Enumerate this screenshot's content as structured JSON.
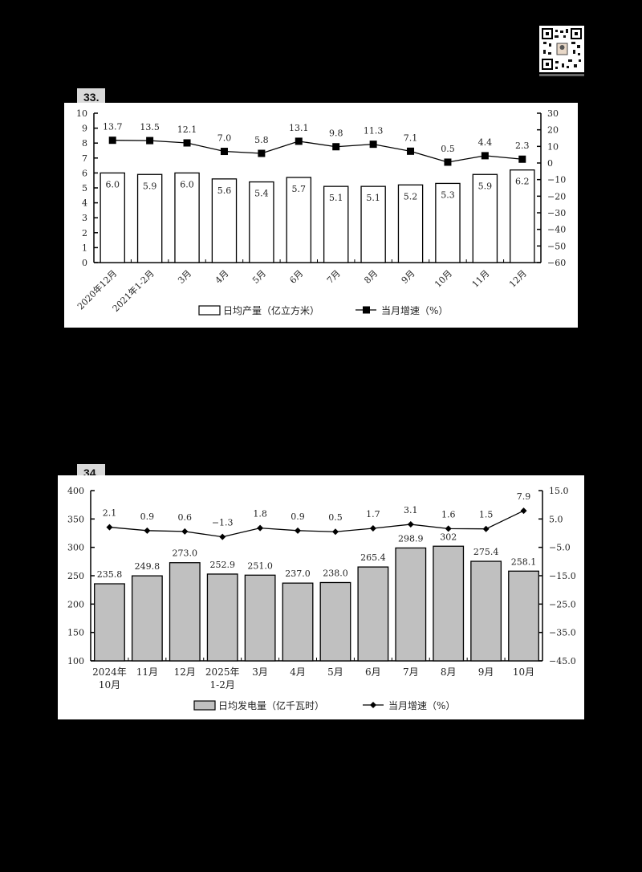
{
  "qr_code": {
    "icon": "qr-code-icon"
  },
  "chart_data": [
    {
      "id": "33",
      "label": "33.",
      "type": "bar+line",
      "categories": [
        "2020年12月",
        "2021年1-2月",
        "3月",
        "4月",
        "5月",
        "6月",
        "7月",
        "8月",
        "9月",
        "10月",
        "11月",
        "12月"
      ],
      "series": [
        {
          "name": "日均产量（亿立方米）",
          "type": "bar",
          "axis": "left",
          "color": "#ffffff",
          "values": [
            6.0,
            5.9,
            6.0,
            5.6,
            5.4,
            5.7,
            5.1,
            5.1,
            5.2,
            5.3,
            5.9,
            6.2
          ]
        },
        {
          "name": "当月增速（%）",
          "type": "line",
          "axis": "right",
          "marker": "square",
          "color": "#000000",
          "values": [
            13.7,
            13.5,
            12.1,
            7.0,
            5.8,
            13.1,
            9.8,
            11.3,
            7.1,
            0.5,
            4.4,
            2.3
          ]
        }
      ],
      "left_axis": {
        "min": 0,
        "max": 10,
        "ticks": [
          0,
          1,
          2,
          3,
          4,
          5,
          6,
          7,
          8,
          9,
          10
        ]
      },
      "right_axis": {
        "min": -60,
        "max": 30,
        "ticks": [
          30,
          20,
          10,
          0,
          -10,
          -20,
          -30,
          -40,
          -50,
          -60
        ]
      },
      "bar_labels": [
        "6.0",
        "5.9",
        "6.0",
        "5.6",
        "5.4",
        "5.7",
        "5.1",
        "5.1",
        "5.2",
        "5.3",
        "5.9",
        "6.2"
      ],
      "line_labels": [
        "13.7",
        "13.5",
        "12.1",
        "7.0",
        "5.8",
        "13.1",
        "9.8",
        "11.3",
        "7.1",
        "0.5",
        "4.4",
        "2.3"
      ],
      "legend_position": "bottom",
      "grid": false
    },
    {
      "id": "34",
      "label": "34.",
      "type": "bar+line",
      "categories": [
        "2024年\n10月",
        "11月",
        "12月",
        "2025年\n1-2月",
        "3月",
        "4月",
        "5月",
        "6月",
        "7月",
        "8月",
        "9月",
        "10月"
      ],
      "category_lines": [
        [
          "2024年",
          "10月"
        ],
        [
          "11月"
        ],
        [
          "12月"
        ],
        [
          "2025年",
          "1-2月"
        ],
        [
          "3月"
        ],
        [
          "4月"
        ],
        [
          "5月"
        ],
        [
          "6月"
        ],
        [
          "7月"
        ],
        [
          "8月"
        ],
        [
          "9月"
        ],
        [
          "10月"
        ]
      ],
      "series": [
        {
          "name": "日均发电量（亿千瓦时）",
          "type": "bar",
          "axis": "left",
          "color": "#c0c0c0",
          "values": [
            235.8,
            249.8,
            273.0,
            252.9,
            251.0,
            237.0,
            238.0,
            265.4,
            298.9,
            302,
            275.4,
            258.1
          ]
        },
        {
          "name": "当月增速（%）",
          "type": "line",
          "axis": "right",
          "marker": "diamond",
          "color": "#000000",
          "values": [
            2.1,
            0.9,
            0.6,
            -1.3,
            1.8,
            0.9,
            0.5,
            1.7,
            3.1,
            1.6,
            1.5,
            7.9
          ]
        }
      ],
      "left_axis": {
        "min": 100,
        "max": 400,
        "ticks": [
          100,
          150,
          200,
          250,
          300,
          350,
          400
        ]
      },
      "right_axis": {
        "min": -45,
        "max": 15,
        "ticks": [
          "15.0",
          "5.0",
          "-5.0",
          "-15.0",
          "-25.0",
          "-35.0",
          "-45.0"
        ]
      },
      "bar_labels": [
        "235.8",
        "249.8",
        "273.0",
        "252.9",
        "251.0",
        "237.0",
        "238.0",
        "265.4",
        "298.9",
        "302",
        "275.4",
        "258.1"
      ],
      "line_labels": [
        "2.1",
        "0.9",
        "0.6",
        "-1.3",
        "1.8",
        "0.9",
        "0.5",
        "1.7",
        "3.1",
        "1.6",
        "1.5",
        "7.9"
      ],
      "legend_position": "bottom",
      "grid": false
    }
  ]
}
